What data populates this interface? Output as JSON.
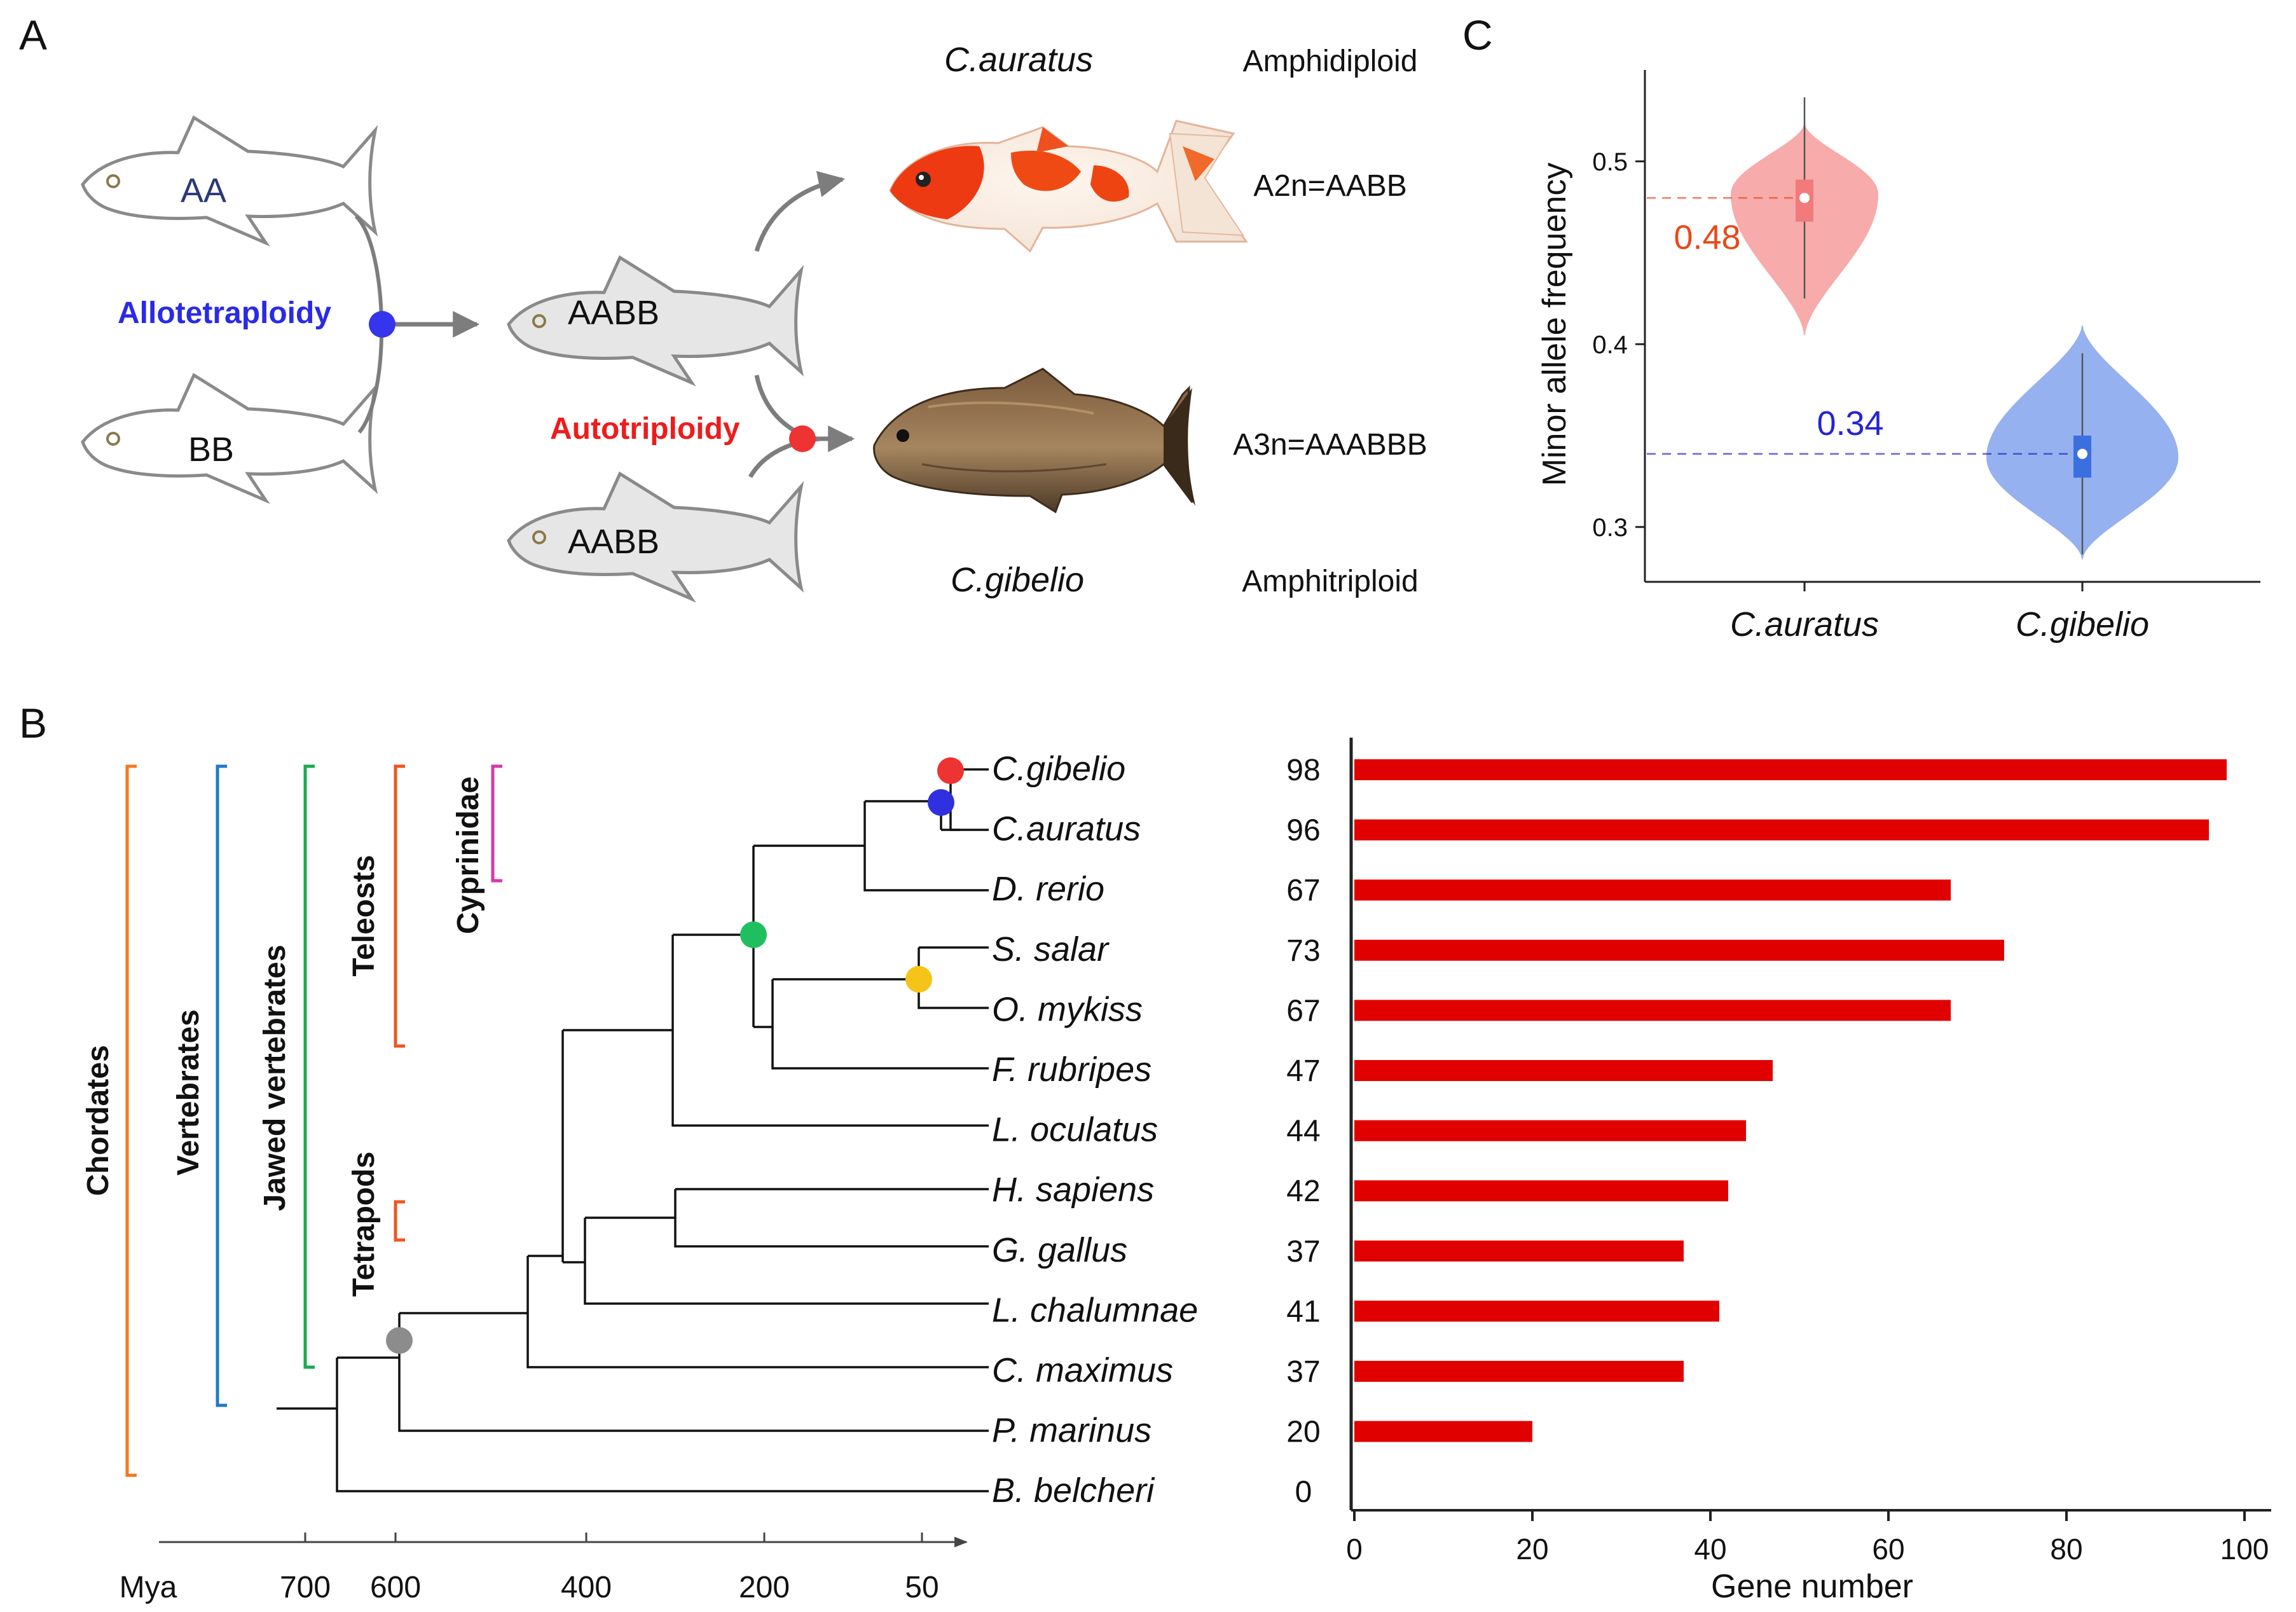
{
  "panels": {
    "a": "A",
    "b": "B",
    "c": "C"
  },
  "panel_a": {
    "fish_aa": "AA",
    "fish_bb": "BB",
    "allotetraploidy": "Allotetraploidy",
    "autotriploidy": "Autotriploidy",
    "fish_aabb_top": "AABB",
    "fish_aabb_bottom": "AABB",
    "species_top": "C.auratus",
    "ploidy_top": "Amphidiploid",
    "genome_top": "A2n=AABB",
    "species_bottom": "C.gibelio",
    "ploidy_bottom": "Amphitriploid",
    "genome_bottom": "A3n=AAABBB",
    "colors": {
      "allo": "#2a2ae8",
      "auto": "#ee1c1c"
    }
  },
  "panel_b": {
    "clades": [
      "Chordates",
      "Vertebrates",
      "Jawed vertebrates",
      "Teleosts",
      "Cyprinidae",
      "Tetrapods"
    ],
    "clade_colors": {
      "Chordates": "#f07a22",
      "Vertebrates": "#1f78c8",
      "Jawed vertebrates": "#1aaa52",
      "Teleosts": "#ee5520",
      "Cyprinidae": "#d33aa8",
      "Tetrapods": "#ee5520"
    },
    "node_colors": [
      "#ee3333",
      "#3030e0",
      "#1fbf5f",
      "#f6c418",
      "#8c8c8c"
    ],
    "time_axis": {
      "unit": "Mya",
      "ticks": [
        "700",
        "600",
        "400",
        "200",
        "50"
      ]
    },
    "chart_data": {
      "type": "bar",
      "orientation": "horizontal",
      "categories": [
        "C.gibelio",
        "C.auratus",
        "D. rerio",
        "S. salar",
        "O. mykiss",
        "F. rubripes",
        "L. oculatus",
        "H. sapiens",
        "G. gallus",
        "L. chalumnae",
        "C. maximus",
        "P. marinus",
        "B. belcheri"
      ],
      "values": [
        98,
        96,
        67,
        73,
        67,
        47,
        44,
        42,
        37,
        41,
        37,
        20,
        0
      ],
      "xlabel": "Gene number",
      "xlim": [
        0,
        100
      ],
      "xticks": [
        "0",
        "20",
        "40",
        "60",
        "80",
        "100"
      ],
      "bar_color": "#e00000"
    }
  },
  "panel_c": {
    "chart_data": {
      "type": "violin",
      "categories": [
        "C.auratus",
        "C.gibelio"
      ],
      "ylabel": "Minor allele frequency",
      "ylim": [
        0.27,
        0.55
      ],
      "yticks": [
        "0.3",
        "0.4",
        "0.5"
      ],
      "series": [
        {
          "category": "C.auratus",
          "median": 0.48,
          "label": "0.48",
          "color": "#f7a3a3",
          "label_color": "#e84a1a"
        },
        {
          "category": "C.gibelio",
          "median": 0.34,
          "label": "0.34",
          "color": "#8aa9ee",
          "label_color": "#2424d6"
        }
      ]
    }
  }
}
